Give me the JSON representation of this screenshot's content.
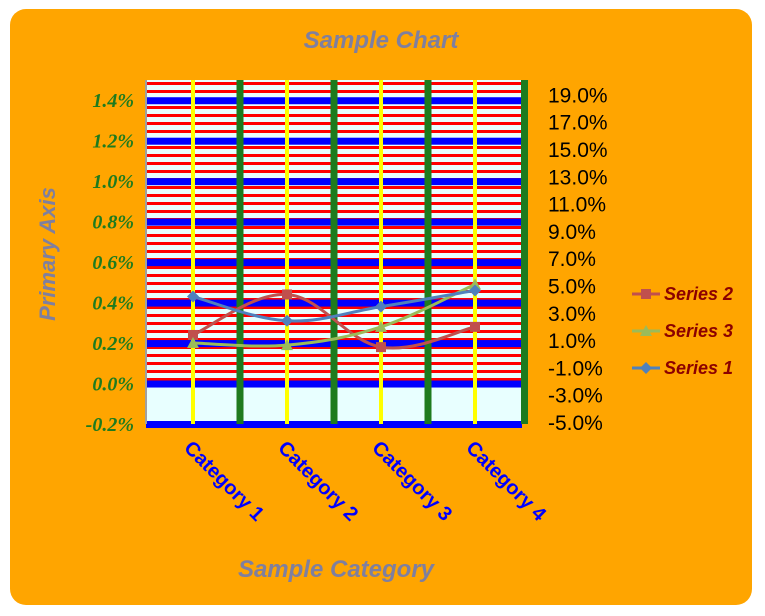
{
  "chart_data": {
    "type": "line",
    "title": "Sample Chart",
    "xlabel": "Sample Category",
    "ylabel": "Primary Axis",
    "categories": [
      "Category 1",
      "Category 2",
      "Category 3",
      "Category 4"
    ],
    "primary_axis": {
      "ylim": [
        -0.2,
        1.5
      ],
      "tick_values": [
        -0.2,
        0.0,
        0.2,
        0.4,
        0.6,
        0.8,
        1.0,
        1.2,
        1.4
      ],
      "tick_labels": [
        "-0.2%",
        "0.0%",
        "0.2%",
        "0.4%",
        "0.6%",
        "0.8%",
        "1.0%",
        "1.2%",
        "1.4%"
      ]
    },
    "secondary_axis": {
      "ylim": [
        -5.0,
        19.0
      ],
      "tick_labels": [
        "-5.0%",
        "-3.0%",
        "-1.0%",
        "1.0%",
        "3.0%",
        "5.0%",
        "7.0%",
        "9.0%",
        "11.0%",
        "13.0%",
        "15.0%",
        "17.0%",
        "19.0%"
      ]
    },
    "series": [
      {
        "name": "Series 2",
        "values": [
          0.24,
          0.44,
          0.18,
          0.28
        ],
        "color": "#C0504D",
        "marker": "square"
      },
      {
        "name": "Series 3",
        "values": [
          0.2,
          0.19,
          0.28,
          0.49
        ],
        "color": "#9BBB59",
        "marker": "triangle"
      },
      {
        "name": "Series 1",
        "values": [
          0.43,
          0.31,
          0.38,
          0.46
        ],
        "color": "#4F81BD",
        "marker": "diamond"
      }
    ],
    "legend": {
      "placement": "right",
      "order": [
        "Series 2",
        "Series 3",
        "Series 1"
      ]
    },
    "colors": {
      "background": "#FFA500",
      "plot_stripes": "#FF0000",
      "major_gridlines": "#0000FF",
      "vertical_gridlines": "#FFFF00",
      "category_separators": "#1E7B1E",
      "title": "#7F7F9F",
      "primary_ticks": "#1E7B1E",
      "category_labels": "#0000FF",
      "legend_text": "#8B0000"
    },
    "smooth": true
  }
}
